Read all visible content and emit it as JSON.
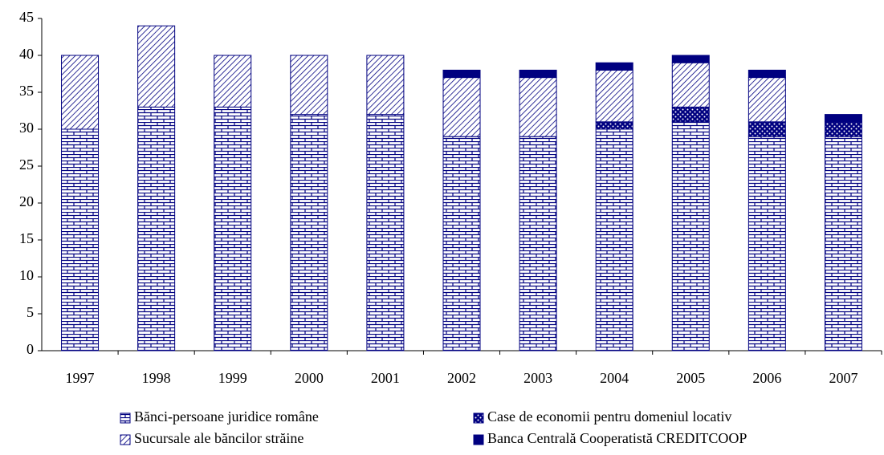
{
  "chart_data": {
    "type": "stacked_bar",
    "categories": [
      "1997",
      "1998",
      "1999",
      "2000",
      "2001",
      "2002",
      "2003",
      "2004",
      "2005",
      "2006",
      "2007"
    ],
    "series": [
      {
        "name": "Bănci-persoane juridice române",
        "color": "#000080",
        "pattern": "brick",
        "values": [
          30,
          33,
          33,
          32,
          32,
          29,
          29,
          30,
          31,
          29,
          29
        ]
      },
      {
        "name": "Case de economii pentru domeniul locativ",
        "color": "#000080",
        "pattern": "dots",
        "values": [
          0,
          0,
          0,
          0,
          0,
          0,
          0,
          1,
          2,
          2,
          2
        ]
      },
      {
        "name": "Sucursale ale băncilor străine",
        "color": "#000080",
        "pattern": "hatch",
        "values": [
          10,
          11,
          7,
          8,
          8,
          8,
          8,
          7,
          6,
          6,
          0
        ]
      },
      {
        "name": "Banca Centrală Cooperatistă CREDITCOOP",
        "color": "#000080",
        "pattern": "solid",
        "values": [
          0,
          0,
          0,
          0,
          0,
          1,
          1,
          1,
          1,
          1,
          1
        ]
      }
    ],
    "ylim": [
      0,
      45
    ],
    "yticks": [
      0,
      5,
      10,
      15,
      20,
      25,
      30,
      35,
      40,
      45
    ],
    "grid": false
  }
}
